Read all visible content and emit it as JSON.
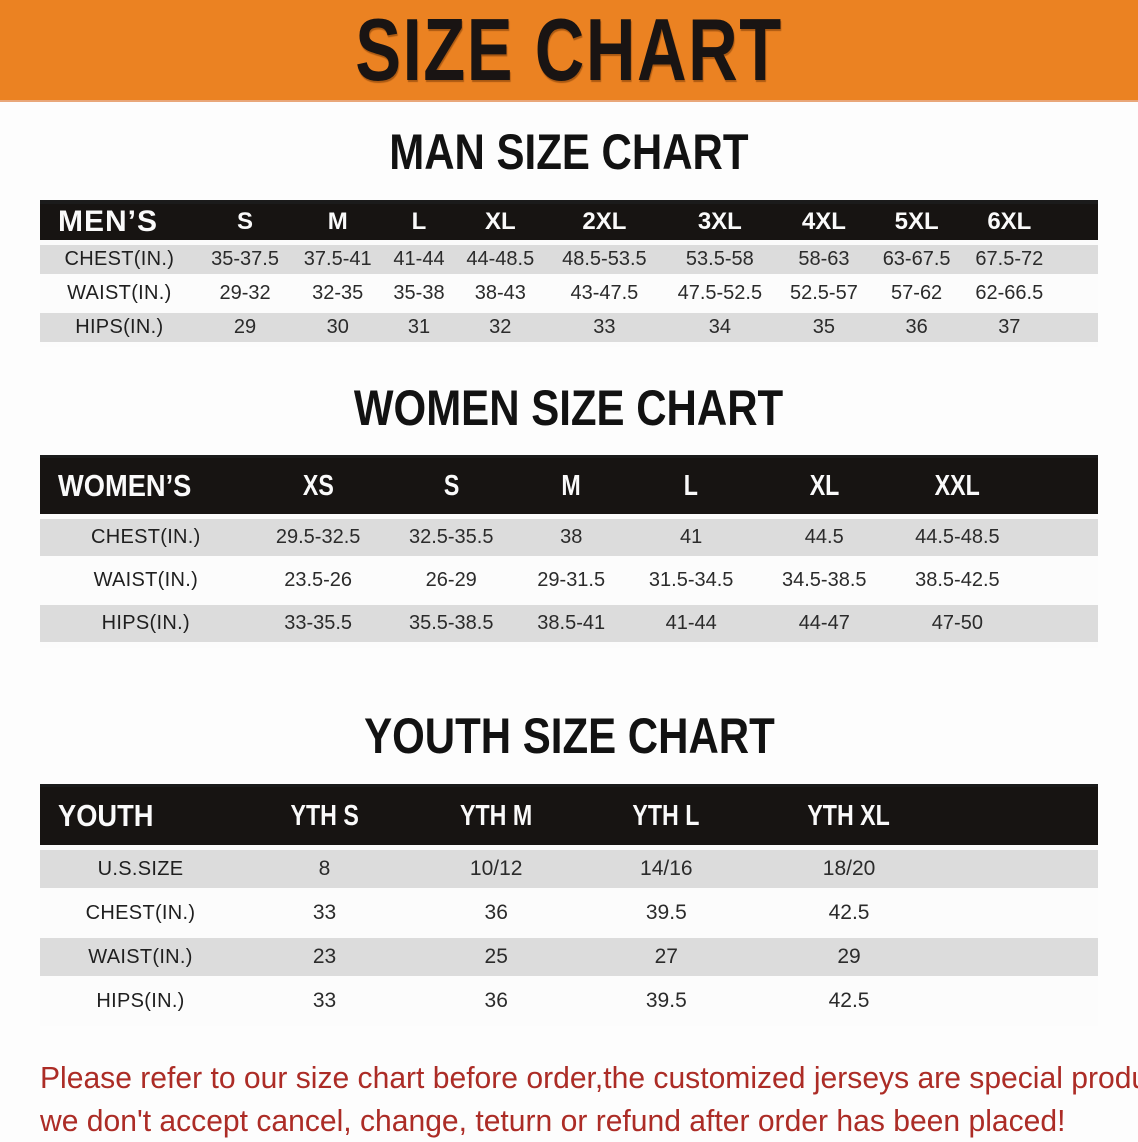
{
  "colors": {
    "banner_bg": "#EB8222",
    "bar": "#171412",
    "row_alt": "#dcdcdc",
    "red": "#AC2C26",
    "ink": "#1c1c1c"
  },
  "banner": {
    "title": "SIZE CHART"
  },
  "sections": [
    {
      "heading": "MAN SIZE CHART",
      "table": {
        "label": "MEN’S",
        "columns": [
          "S",
          "M",
          "L",
          "XL",
          "2XL",
          "3XL",
          "4XL",
          "5XL",
          "6XL"
        ],
        "rows": [
          {
            "label": "CHEST(IN.)",
            "values": [
              "35-37.5",
              "37.5-41",
              "41-44",
              "44-48.5",
              "48.5-53.5",
              "53.5-58",
              "58-63",
              "63-67.5",
              "67.5-72"
            ]
          },
          {
            "label": "WAIST(IN.)",
            "values": [
              "29-32",
              "32-35",
              "35-38",
              "38-43",
              "43-47.5",
              "47.5-52.5",
              "52.5-57",
              "57-62",
              "62-66.5"
            ]
          },
          {
            "label": "HIPS(IN.)",
            "values": [
              "29",
              "30",
              "31",
              "32",
              "33",
              "34",
              "35",
              "36",
              "37"
            ]
          }
        ]
      }
    },
    {
      "heading": "WOMEN SIZE CHART",
      "table": {
        "label": "WOMEN’S",
        "columns": [
          "XS",
          "S",
          "M",
          "L",
          "XL",
          "XXL"
        ],
        "rows": [
          {
            "label": "CHEST(IN.)",
            "values": [
              "29.5-32.5",
              "32.5-35.5",
              "38",
              "41",
              "44.5",
              "44.5-48.5"
            ]
          },
          {
            "label": "WAIST(IN.)",
            "values": [
              "23.5-26",
              "26-29",
              "29-31.5",
              "31.5-34.5",
              "34.5-38.5",
              "38.5-42.5"
            ]
          },
          {
            "label": "HIPS(IN.)",
            "values": [
              "33-35.5",
              "35.5-38.5",
              "38.5-41",
              "41-44",
              "44-47",
              "47-50"
            ]
          }
        ]
      }
    },
    {
      "heading": "YOUTH SIZE CHART",
      "table": {
        "label": "YOUTH",
        "columns": [
          "YTH S",
          "YTH M",
          "YTH L",
          "YTH XL"
        ],
        "rows": [
          {
            "label": "U.S.SIZE",
            "values": [
              "8",
              "10/12",
              "14/16",
              "18/20"
            ]
          },
          {
            "label": "CHEST(IN.)",
            "values": [
              "33",
              "36",
              "39.5",
              "42.5"
            ]
          },
          {
            "label": "WAIST(IN.)",
            "values": [
              "23",
              "25",
              "27",
              "29"
            ]
          },
          {
            "label": "HIPS(IN.)",
            "values": [
              "33",
              "36",
              "39.5",
              "42.5"
            ]
          }
        ]
      }
    }
  ],
  "disclaimer": {
    "line1": "Please refer to our size chart before order,the customized jerseys are special products,",
    "line2": "we don't accept cancel, change, teturn or refund after order has been placed!"
  }
}
